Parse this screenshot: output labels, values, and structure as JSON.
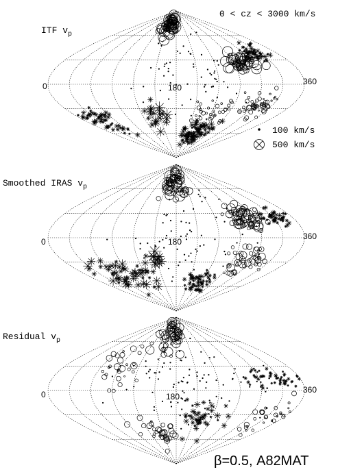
{
  "header": {
    "redshift_range": "0 < cz < 3000 km/s"
  },
  "panels": [
    {
      "id": "itf",
      "title": "ITF v",
      "title_sub": "p",
      "longitude_labels": [
        "0",
        "180",
        "360"
      ]
    },
    {
      "id": "iras",
      "title": "Smoothed IRAS v",
      "title_sub": "p",
      "longitude_labels": [
        "0",
        "180",
        "360"
      ]
    },
    {
      "id": "residual",
      "title": "Residual v",
      "title_sub": "p",
      "longitude_labels": [
        "0",
        "180",
        "360"
      ]
    }
  ],
  "legend": {
    "small_label": "100 km/s",
    "large_label": "500 km/s"
  },
  "footer": {
    "text": "β=0.5, A82MAT"
  }
}
